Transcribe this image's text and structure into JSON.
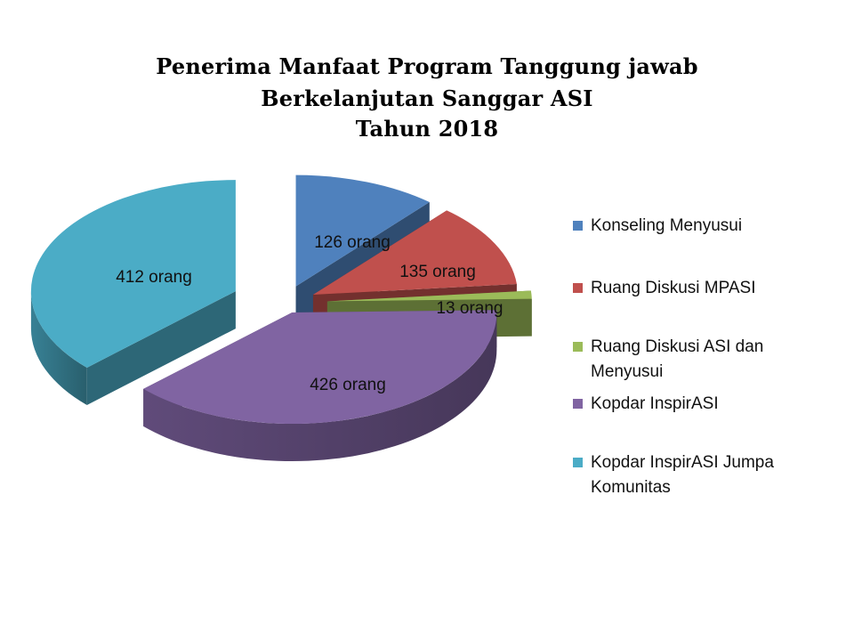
{
  "chart_data": {
    "type": "pie",
    "title": "Penerima Manfaat Program Tanggung jawab Berkelanjutan Sanggar ASI Tahun 2018",
    "title_lines": [
      "Penerima Manfaat Program Tanggung jawab",
      "Berkelanjutan Sanggar ASI",
      "Tahun 2018"
    ],
    "categories": [
      "Konseling Menyusui",
      "Ruang Diskusi MPASI",
      "Ruang Diskusi ASI dan Menyusui",
      "Kopdar InspirASI",
      "Kopdar InspirASI Jumpa Komunitas"
    ],
    "values": [
      126,
      135,
      13,
      426,
      412
    ],
    "data_labels": [
      "126 orang",
      "135 orang",
      "13 orang",
      "426 orang",
      "412 orang"
    ],
    "colors": [
      "#4f81bd",
      "#c0504d",
      "#9bbb59",
      "#8064a2",
      "#4bacc6"
    ],
    "exploded": true,
    "three_d": true,
    "legend_position": "right"
  }
}
